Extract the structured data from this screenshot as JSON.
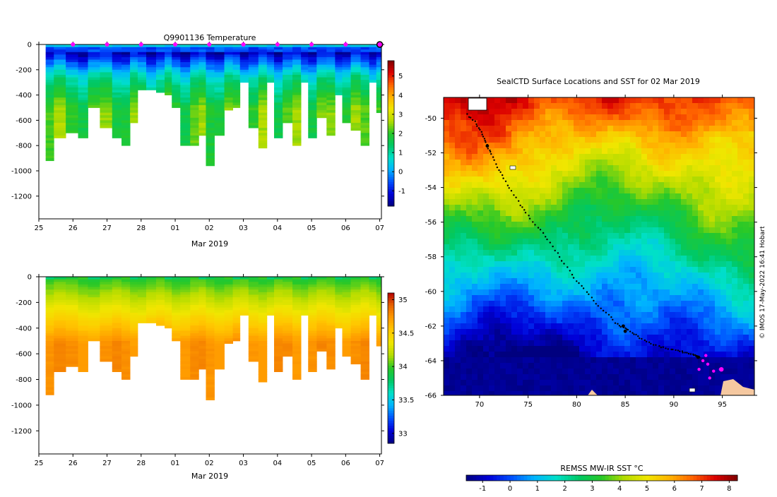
{
  "chart_data": [
    {
      "id": "temperature",
      "type": "heatmap",
      "title": "Q9901136  Temperature",
      "xlabel": "Mar 2019",
      "ylabel": "",
      "x_ticks": [
        "25",
        "26",
        "27",
        "28",
        "01",
        "02",
        "03",
        "04",
        "05",
        "06",
        "07"
      ],
      "x_tick_days": [
        0,
        1,
        2,
        3,
        4,
        5,
        6,
        7,
        8,
        9,
        10
      ],
      "x_range_days": [
        0,
        10.05
      ],
      "y_ticks": [
        0,
        -200,
        -400,
        -600,
        -800,
        -1000,
        -1200
      ],
      "ylim": [
        -1380,
        0
      ],
      "colorbar_ticks": [
        5,
        4,
        3,
        2,
        1,
        0,
        -1
      ],
      "colorbar_range": [
        -1.8,
        5.8
      ],
      "colormap": [
        "#00007f",
        "#0000d8",
        "#0050ff",
        "#00b4ff",
        "#00e0c8",
        "#00c864",
        "#28c828",
        "#b4dc00",
        "#f0e600",
        "#ffb400",
        "#ff6400",
        "#dc0000",
        "#7f0000"
      ],
      "profile_dates": [
        0.3,
        0.58,
        1.0,
        1.3,
        1.58,
        2.0,
        2.3,
        2.55,
        2.8,
        3.0,
        3.3,
        3.58,
        3.8,
        4.0,
        4.3,
        4.58,
        4.8,
        5.0,
        5.3,
        5.58,
        5.8,
        6.0,
        6.3,
        6.58,
        6.8,
        7.0,
        7.3,
        7.58,
        7.8,
        8.0,
        8.3,
        8.58,
        8.8,
        9.0,
        9.3,
        9.58,
        9.8,
        10.0
      ],
      "profile_max_depths": [
        -910,
        -740,
        -700,
        -730,
        -500,
        -650,
        -730,
        -790,
        -610,
        -350,
        -360,
        -380,
        -400,
        -500,
        -800,
        -800,
        -720,
        -960,
        -720,
        -520,
        -500,
        -300,
        -660,
        -820,
        -300,
        -730,
        -610,
        -800,
        -300,
        -730,
        -580,
        -720,
        -400,
        -620,
        -680,
        -800,
        -300,
        -530
      ],
      "markers_days": [
        1,
        2,
        3,
        4,
        5,
        6,
        7,
        8,
        9
      ],
      "marker_color": "#ff00ff"
    },
    {
      "id": "salinity",
      "type": "heatmap",
      "title": "",
      "xlabel": "Mar 2019",
      "ylabel": "",
      "x_ticks": [
        "25",
        "26",
        "27",
        "28",
        "01",
        "02",
        "03",
        "04",
        "05",
        "06",
        "07"
      ],
      "x_tick_days": [
        0,
        1,
        2,
        3,
        4,
        5,
        6,
        7,
        8,
        9,
        10
      ],
      "x_range_days": [
        0,
        10.05
      ],
      "y_ticks": [
        0,
        -200,
        -400,
        -600,
        -800,
        -1000,
        -1200
      ],
      "ylim": [
        -1380,
        0
      ],
      "colorbar_ticks": [
        "35",
        "34.5",
        "34",
        "33.5",
        "33"
      ],
      "colorbar_tick_values": [
        35,
        34.5,
        34,
        33.5,
        33
      ],
      "colorbar_range": [
        32.85,
        35.1
      ],
      "colormap": [
        "#00007f",
        "#0000d8",
        "#0050ff",
        "#00b4ff",
        "#00e0c8",
        "#00c864",
        "#28c828",
        "#b4dc00",
        "#f0e600",
        "#ffc800",
        "#ff9b00",
        "#e86400",
        "#b40000"
      ],
      "profile_dates": [
        0.3,
        0.58,
        1.0,
        1.3,
        1.58,
        2.0,
        2.3,
        2.55,
        2.8,
        3.0,
        3.3,
        3.58,
        3.8,
        4.0,
        4.3,
        4.58,
        4.8,
        5.0,
        5.3,
        5.58,
        5.8,
        6.0,
        6.3,
        6.58,
        6.8,
        7.0,
        7.3,
        7.58,
        7.8,
        8.0,
        8.3,
        8.58,
        8.8,
        9.0,
        9.3,
        9.58,
        9.8,
        10.0
      ],
      "profile_max_depths": [
        -910,
        -740,
        -700,
        -730,
        -500,
        -650,
        -730,
        -790,
        -610,
        -350,
        -360,
        -380,
        -400,
        -500,
        -800,
        -800,
        -720,
        -960,
        -720,
        -520,
        -500,
        -300,
        -660,
        -820,
        -300,
        -730,
        -610,
        -800,
        -300,
        -730,
        -580,
        -720,
        -400,
        -620,
        -680,
        -800,
        -300,
        -530
      ]
    },
    {
      "id": "sst_map",
      "type": "heatmap",
      "title": "SealCTD Surface Locations and SST for 02 Mar 2019",
      "x_ticks": [
        70,
        75,
        80,
        85,
        90,
        95
      ],
      "y_ticks": [
        -50,
        -52,
        -54,
        -56,
        -58,
        -60,
        -62,
        -64,
        -66
      ],
      "lon_range": [
        66.3,
        98.3
      ],
      "lat_range": [
        -66,
        -48.8
      ],
      "colorbar_label": "REMSS MW-IR SST °C",
      "colorbar_ticks": [
        -1,
        0,
        1,
        2,
        3,
        4,
        5,
        6,
        7,
        8
      ],
      "colorbar_range": [
        -1.6,
        8.3
      ],
      "colormap": [
        "#00007f",
        "#0000d8",
        "#0050ff",
        "#00b4ff",
        "#00e0c8",
        "#00c864",
        "#28c828",
        "#b4dc00",
        "#f0e600",
        "#ffb400",
        "#ff6400",
        "#dc0000",
        "#7f0000"
      ],
      "track_lon": [
        68.8,
        69.5,
        70.1,
        70.5,
        70.8,
        71.2,
        71.8,
        72.5,
        73.3,
        74.2,
        75.0,
        76.0,
        77.0,
        78.0,
        79.0,
        80.0,
        81.0,
        82.0,
        83.0,
        84.0,
        84.8,
        85.5,
        86.3,
        87.2,
        88.2,
        89.2,
        90.2,
        91.0,
        91.8,
        92.3,
        92.8
      ],
      "track_lat": [
        -49.8,
        -50.2,
        -50.7,
        -51.2,
        -51.6,
        -52.1,
        -52.8,
        -53.5,
        -54.2,
        -55.0,
        -55.6,
        -56.3,
        -57.0,
        -57.8,
        -58.6,
        -59.4,
        -60.0,
        -60.7,
        -61.2,
        -61.8,
        -62.1,
        -62.3,
        -62.6,
        -62.9,
        -63.1,
        -63.3,
        -63.4,
        -63.5,
        -63.6,
        -63.7,
        -63.8
      ],
      "recent_lon": [
        93.0,
        93.5,
        94.1,
        93.7,
        92.6,
        94.8,
        93.3
      ],
      "recent_lat": [
        -64.0,
        -64.2,
        -64.6,
        -65.0,
        -64.5,
        -64.5,
        -63.7
      ],
      "recent_color": "#ff00ff",
      "land_color": "#f5c8a0",
      "credit": "© IMOS 17-May-2022 16:41 Hobart"
    }
  ]
}
